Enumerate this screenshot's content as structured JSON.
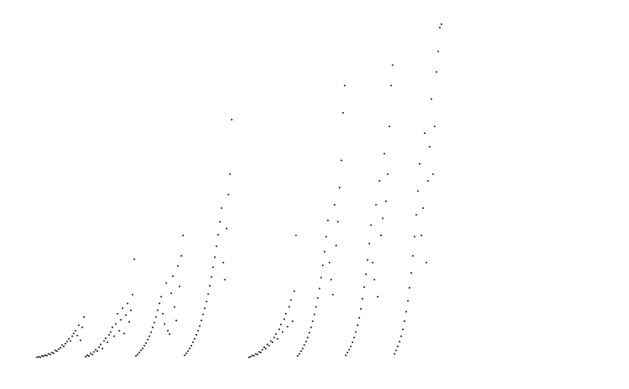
{
  "chart_data": {
    "type": "scatter",
    "title": "",
    "xlabel": "",
    "ylabel": "",
    "grid": false,
    "legend": "none",
    "axes_visible": false,
    "point_color": "#000000",
    "xlim": [
      0,
      1000
    ],
    "ylim": [
      0,
      1000
    ],
    "points": [
      [
        1,
        22
      ],
      [
        4,
        24
      ],
      [
        7,
        22
      ],
      [
        10,
        26
      ],
      [
        13,
        25
      ],
      [
        16,
        28
      ],
      [
        19,
        27
      ],
      [
        22,
        32
      ],
      [
        25,
        30
      ],
      [
        28,
        36
      ],
      [
        31,
        34
      ],
      [
        34,
        42
      ],
      [
        37,
        40
      ],
      [
        40,
        46
      ],
      [
        43,
        50
      ],
      [
        46,
        58
      ],
      [
        49,
        54
      ],
      [
        52,
        62
      ],
      [
        55,
        68
      ],
      [
        58,
        76
      ],
      [
        61,
        70
      ],
      [
        64,
        84
      ],
      [
        67,
        92
      ],
      [
        70,
        100
      ],
      [
        73,
        86
      ],
      [
        76,
        116
      ],
      [
        79,
        72
      ],
      [
        82,
        110
      ],
      [
        85,
        140
      ],
      [
        88,
        24
      ],
      [
        91,
        28
      ],
      [
        94,
        26
      ],
      [
        97,
        34
      ],
      [
        100,
        30
      ],
      [
        103,
        38
      ],
      [
        106,
        44
      ],
      [
        109,
        40
      ],
      [
        112,
        52
      ],
      [
        115,
        60
      ],
      [
        118,
        48
      ],
      [
        121,
        70
      ],
      [
        124,
        78
      ],
      [
        127,
        66
      ],
      [
        130,
        88
      ],
      [
        133,
        96
      ],
      [
        136,
        110
      ],
      [
        139,
        84
      ],
      [
        142,
        120
      ],
      [
        145,
        150
      ],
      [
        148,
        100
      ],
      [
        151,
        132
      ],
      [
        154,
        166
      ],
      [
        157,
        92
      ],
      [
        160,
        146
      ],
      [
        163,
        180
      ],
      [
        166,
        126
      ],
      [
        169,
        160
      ],
      [
        172,
        206
      ],
      [
        175,
        310
      ],
      [
        178,
        26
      ],
      [
        181,
        30
      ],
      [
        184,
        36
      ],
      [
        187,
        42
      ],
      [
        190,
        48
      ],
      [
        193,
        56
      ],
      [
        196,
        64
      ],
      [
        199,
        74
      ],
      [
        202,
        84
      ],
      [
        205,
        96
      ],
      [
        208,
        110
      ],
      [
        211,
        124
      ],
      [
        214,
        140
      ],
      [
        217,
        160
      ],
      [
        220,
        180
      ],
      [
        223,
        200
      ],
      [
        226,
        150
      ],
      [
        229,
        120
      ],
      [
        232,
        240
      ],
      [
        235,
        100
      ],
      [
        238,
        90
      ],
      [
        241,
        210
      ],
      [
        244,
        260
      ],
      [
        247,
        170
      ],
      [
        250,
        130
      ],
      [
        253,
        290
      ],
      [
        256,
        230
      ],
      [
        259,
        320
      ],
      [
        262,
        380
      ],
      [
        265,
        28
      ],
      [
        268,
        34
      ],
      [
        271,
        40
      ],
      [
        274,
        48
      ],
      [
        277,
        56
      ],
      [
        280,
        66
      ],
      [
        283,
        76
      ],
      [
        286,
        88
      ],
      [
        289,
        100
      ],
      [
        292,
        114
      ],
      [
        295,
        130
      ],
      [
        298,
        148
      ],
      [
        301,
        166
      ],
      [
        304,
        186
      ],
      [
        307,
        208
      ],
      [
        310,
        232
      ],
      [
        313,
        258
      ],
      [
        316,
        286
      ],
      [
        319,
        316
      ],
      [
        322,
        348
      ],
      [
        325,
        382
      ],
      [
        328,
        420
      ],
      [
        331,
        460
      ],
      [
        334,
        300
      ],
      [
        337,
        250
      ],
      [
        340,
        400
      ],
      [
        343,
        500
      ],
      [
        346,
        560
      ],
      [
        349,
        720
      ],
      [
        380,
        22
      ],
      [
        383,
        24
      ],
      [
        386,
        28
      ],
      [
        389,
        26
      ],
      [
        392,
        32
      ],
      [
        395,
        30
      ],
      [
        398,
        38
      ],
      [
        401,
        36
      ],
      [
        404,
        44
      ],
      [
        407,
        52
      ],
      [
        410,
        48
      ],
      [
        413,
        60
      ],
      [
        416,
        56
      ],
      [
        419,
        70
      ],
      [
        422,
        66
      ],
      [
        425,
        80
      ],
      [
        428,
        90
      ],
      [
        431,
        76
      ],
      [
        434,
        104
      ],
      [
        437,
        118
      ],
      [
        440,
        96
      ],
      [
        443,
        134
      ],
      [
        446,
        150
      ],
      [
        449,
        112
      ],
      [
        452,
        170
      ],
      [
        455,
        190
      ],
      [
        458,
        128
      ],
      [
        461,
        216
      ],
      [
        464,
        380
      ],
      [
        467,
        26
      ],
      [
        470,
        32
      ],
      [
        473,
        40
      ],
      [
        476,
        48
      ],
      [
        479,
        58
      ],
      [
        482,
        68
      ],
      [
        485,
        80
      ],
      [
        488,
        94
      ],
      [
        491,
        110
      ],
      [
        494,
        128
      ],
      [
        497,
        148
      ],
      [
        500,
        170
      ],
      [
        503,
        196
      ],
      [
        506,
        224
      ],
      [
        509,
        256
      ],
      [
        512,
        292
      ],
      [
        515,
        332
      ],
      [
        518,
        376
      ],
      [
        521,
        424
      ],
      [
        524,
        300
      ],
      [
        527,
        250
      ],
      [
        530,
        206
      ],
      [
        533,
        470
      ],
      [
        536,
        350
      ],
      [
        539,
        420
      ],
      [
        542,
        520
      ],
      [
        545,
        600
      ],
      [
        548,
        740
      ],
      [
        551,
        820
      ],
      [
        553,
        28
      ],
      [
        556,
        36
      ],
      [
        559,
        44
      ],
      [
        562,
        54
      ],
      [
        565,
        66
      ],
      [
        568,
        80
      ],
      [
        571,
        96
      ],
      [
        574,
        116
      ],
      [
        577,
        138
      ],
      [
        580,
        164
      ],
      [
        583,
        194
      ],
      [
        586,
        228
      ],
      [
        589,
        266
      ],
      [
        592,
        308
      ],
      [
        595,
        356
      ],
      [
        598,
        410
      ],
      [
        601,
        300
      ],
      [
        604,
        250
      ],
      [
        607,
        470
      ],
      [
        610,
        200
      ],
      [
        613,
        540
      ],
      [
        616,
        380
      ],
      [
        619,
        430
      ],
      [
        622,
        620
      ],
      [
        625,
        480
      ],
      [
        628,
        560
      ],
      [
        631,
        700
      ],
      [
        634,
        820
      ],
      [
        637,
        880
      ],
      [
        640,
        32
      ],
      [
        643,
        42
      ],
      [
        646,
        54
      ],
      [
        649,
        68
      ],
      [
        652,
        84
      ],
      [
        655,
        104
      ],
      [
        658,
        128
      ],
      [
        661,
        156
      ],
      [
        664,
        188
      ],
      [
        667,
        226
      ],
      [
        670,
        270
      ],
      [
        673,
        320
      ],
      [
        676,
        376
      ],
      [
        679,
        440
      ],
      [
        682,
        510
      ],
      [
        685,
        590
      ],
      [
        688,
        380
      ],
      [
        691,
        460
      ],
      [
        694,
        680
      ],
      [
        697,
        300
      ],
      [
        700,
        540
      ],
      [
        703,
        640
      ],
      [
        706,
        780
      ],
      [
        709,
        560
      ],
      [
        712,
        700
      ],
      [
        715,
        860
      ],
      [
        718,
        920
      ],
      [
        721,
        990
      ],
      [
        724,
        1000
      ]
    ]
  }
}
